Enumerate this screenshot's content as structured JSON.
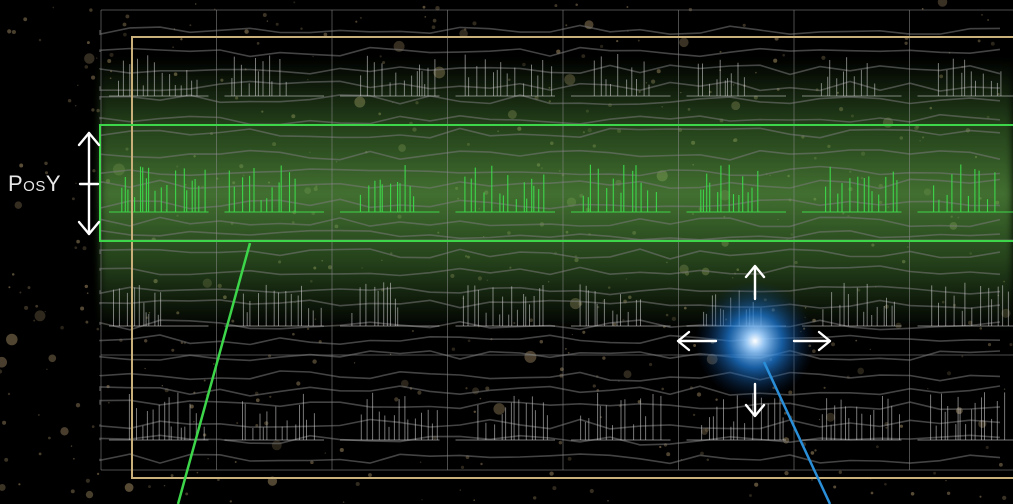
{
  "labels": {
    "posy": "PosY"
  },
  "colors": {
    "background": "#000000",
    "grid_line": "#8a8a8a",
    "outer_frame": "#c9b07a",
    "highlight_band": "#3dd64a",
    "highlight_glow": "#4f8f3a",
    "cursor_glow": "#1e7bd6",
    "cursor_line": "#2a8fd8",
    "arrow": "#ffffff",
    "dust": "#6b5c42"
  },
  "grid": {
    "columns": 8,
    "rows": 4
  },
  "icons": {
    "vertical_arrow": "double-headed-vertical-arrow",
    "move_arrows": "four-direction-arrows"
  }
}
